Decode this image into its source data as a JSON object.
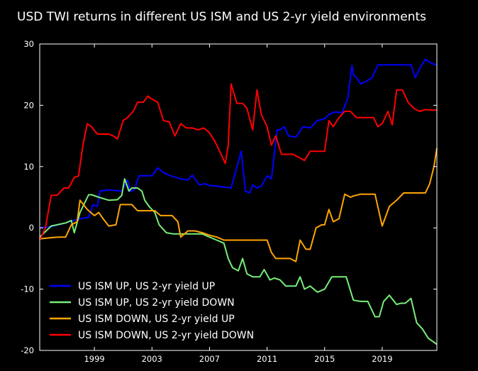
{
  "chart_data": {
    "type": "line",
    "title": "USD TWI returns in different US ISM and US 2-yr yield environments",
    "xlabel": "",
    "ylabel": "",
    "xlim": [
      1995.2,
      2022.8
    ],
    "ylim": [
      -20,
      30
    ],
    "xticks": [
      1999,
      2003,
      2007,
      2011,
      2015,
      2019
    ],
    "yticks": [
      -20,
      -10,
      0,
      10,
      20,
      30
    ],
    "grid": false,
    "legend_position": "lower-left",
    "series": [
      {
        "name": "US ISM UP, US 2-yr yield UP",
        "color": "#0000ff",
        "x": [
          1995.2,
          1996.0,
          1997.0,
          1998.0,
          1998.6,
          1998.9,
          1999.2,
          1999.4,
          2000.0,
          2000.9,
          2001.3,
          2001.5,
          2001.8,
          2002.1,
          2003.0,
          2003.4,
          2003.8,
          2004.3,
          2005.0,
          2005.5,
          2005.8,
          2006.3,
          2006.7,
          2007.0,
          2007.5,
          2008.5,
          2009.2,
          2009.5,
          2009.8,
          2010.0,
          2010.3,
          2010.6,
          2011.0,
          2011.3,
          2011.7,
          2011.9,
          2012.2,
          2012.5,
          2013.0,
          2013.5,
          2014.0,
          2014.5,
          2015.0,
          2015.3,
          2015.7,
          2016.2,
          2016.6,
          2016.9,
          2017.0,
          2017.2,
          2017.5,
          2017.8,
          2018.3,
          2018.7,
          2019.0,
          2019.5,
          2020.0,
          2020.5,
          2021.0,
          2021.3,
          2021.7,
          2022.0,
          2022.3,
          2022.8
        ],
        "y": [
          0,
          0.2,
          0.8,
          1.5,
          1.7,
          3.8,
          3.5,
          6.0,
          6.2,
          6.0,
          7.8,
          5.9,
          6.3,
          8.5,
          8.5,
          9.8,
          9.0,
          8.5,
          8.0,
          7.8,
          8.6,
          7.0,
          7.2,
          6.9,
          6.8,
          6.5,
          12.5,
          6.0,
          5.7,
          7.0,
          6.5,
          6.8,
          8.5,
          8.0,
          16.0,
          16.0,
          16.5,
          15.0,
          14.8,
          16.5,
          16.3,
          17.5,
          17.8,
          18.5,
          18.9,
          18.8,
          21.0,
          26.5,
          25.0,
          24.5,
          23.5,
          23.8,
          24.5,
          26.6,
          26.6,
          26.6,
          26.6,
          26.6,
          26.6,
          24.5,
          26.4,
          27.5,
          27.0,
          26.5
        ]
      },
      {
        "name": "US ISM UP, US 2-yr yield DOWN",
        "color": "#77ee77",
        "x": [
          1995.2,
          1996.0,
          1997.0,
          1997.4,
          1997.6,
          1998.0,
          1998.6,
          1998.8,
          1999.3,
          2000.0,
          2000.6,
          2000.9,
          2001.1,
          2001.4,
          2001.6,
          2002.0,
          2002.3,
          2002.5,
          2002.8,
          2003.2,
          2003.5,
          2004.0,
          2004.5,
          2005.0,
          2005.5,
          2006.0,
          2006.5,
          2007.0,
          2007.5,
          2008.0,
          2008.3,
          2008.6,
          2009.0,
          2009.3,
          2009.6,
          2010.0,
          2010.5,
          2010.8,
          2011.2,
          2011.5,
          2011.9,
          2012.3,
          2013.0,
          2013.3,
          2013.6,
          2014.0,
          2014.5,
          2015.0,
          2015.5,
          2016.0,
          2016.5,
          2017.0,
          2017.5,
          2018.0,
          2018.5,
          2018.8,
          2019.1,
          2019.5,
          2020.0,
          2020.3,
          2020.6,
          2021.0,
          2021.4,
          2021.8,
          2022.2,
          2022.8
        ],
        "y": [
          -1.5,
          0.3,
          0.8,
          1.2,
          -0.8,
          2.5,
          5.4,
          5.4,
          5.0,
          4.5,
          4.6,
          5.3,
          8.0,
          6.0,
          6.5,
          6.5,
          6.0,
          4.5,
          3.5,
          2.5,
          0.5,
          -0.8,
          -1.0,
          -1.0,
          -1.0,
          -1.0,
          -1.0,
          -1.5,
          -2.0,
          -2.5,
          -5.0,
          -6.5,
          -7.0,
          -5.0,
          -7.5,
          -8.0,
          -8.0,
          -6.8,
          -8.5,
          -8.2,
          -8.5,
          -9.5,
          -9.5,
          -8.0,
          -10.0,
          -9.5,
          -10.5,
          -10.0,
          -8.0,
          -8.0,
          -8.0,
          -11.8,
          -12.0,
          -12.0,
          -14.5,
          -14.5,
          -12.0,
          -11.0,
          -12.5,
          -12.3,
          -12.3,
          -11.5,
          -15.5,
          -16.5,
          -18.0,
          -19.0
        ]
      },
      {
        "name": "US ISM DOWN, US 2-yr yield UP",
        "color": "#ffa500",
        "x": [
          1995.2,
          1996.0,
          1996.5,
          1997.0,
          1997.4,
          1997.8,
          1998.0,
          1998.5,
          1999.0,
          1999.3,
          1999.6,
          2000.0,
          2000.5,
          2000.8,
          2001.2,
          2001.6,
          2002.0,
          2002.4,
          2002.8,
          2003.2,
          2003.6,
          2004.0,
          2004.4,
          2004.8,
          2005.0,
          2005.5,
          2006.0,
          2006.5,
          2007.0,
          2007.5,
          2008.0,
          2008.5,
          2009.0,
          2009.5,
          2010.0,
          2010.5,
          2011.0,
          2011.3,
          2011.6,
          2012.0,
          2012.3,
          2012.6,
          2013.0,
          2013.3,
          2013.7,
          2014.0,
          2014.4,
          2014.8,
          2015.0,
          2015.3,
          2015.6,
          2016.0,
          2016.4,
          2016.8,
          2017.0,
          2017.5,
          2018.0,
          2018.5,
          2019.0,
          2019.5,
          2020.0,
          2020.5,
          2021.0,
          2021.5,
          2022.0,
          2022.3,
          2022.6,
          2022.8
        ],
        "y": [
          -1.8,
          -1.6,
          -1.5,
          -1.5,
          0.5,
          1.0,
          4.5,
          3.0,
          2.0,
          2.5,
          1.5,
          0.3,
          0.5,
          3.8,
          3.8,
          3.8,
          2.8,
          2.8,
          2.8,
          2.8,
          2.0,
          2.0,
          2.0,
          1.0,
          -1.5,
          -0.5,
          -0.5,
          -0.8,
          -1.2,
          -1.5,
          -2.0,
          -2.0,
          -2.0,
          -2.0,
          -2.0,
          -2.0,
          -2.0,
          -4.0,
          -5.0,
          -5.0,
          -5.0,
          -5.0,
          -5.5,
          -2.0,
          -3.5,
          -3.5,
          0.0,
          0.5,
          0.5,
          3.0,
          1.0,
          1.5,
          5.5,
          5.0,
          5.2,
          5.5,
          5.5,
          5.5,
          0.3,
          3.5,
          4.5,
          5.7,
          5.7,
          5.7,
          5.7,
          7.2,
          10.0,
          13.0
        ]
      },
      {
        "name": "US ISM DOWN, US 2-yr yield DOWN",
        "color": "#ff0000",
        "x": [
          1995.2,
          1995.6,
          1996.0,
          1996.4,
          1996.9,
          1997.2,
          1997.6,
          1997.9,
          1998.2,
          1998.5,
          1998.8,
          1999.2,
          1999.6,
          2000.0,
          2000.3,
          2000.6,
          2001.0,
          2001.3,
          2001.7,
          2002.0,
          2002.4,
          2002.7,
          2003.0,
          2003.4,
          2003.8,
          2004.2,
          2004.6,
          2005.0,
          2005.4,
          2005.8,
          2006.2,
          2006.6,
          2007.0,
          2007.4,
          2007.8,
          2008.1,
          2008.3,
          2008.5,
          2008.9,
          2009.3,
          2009.6,
          2010.0,
          2010.3,
          2010.6,
          2011.0,
          2011.3,
          2011.6,
          2012.0,
          2012.4,
          2012.8,
          2013.2,
          2013.6,
          2014.0,
          2014.5,
          2015.0,
          2015.3,
          2015.6,
          2016.0,
          2016.4,
          2016.8,
          2017.2,
          2017.6,
          2018.0,
          2018.4,
          2018.7,
          2019.0,
          2019.4,
          2019.7,
          2020.0,
          2020.4,
          2020.8,
          2021.2,
          2021.6,
          2022.0,
          2022.4,
          2022.8
        ],
        "y": [
          -2.0,
          0.0,
          5.3,
          5.3,
          6.5,
          6.5,
          8.2,
          8.5,
          13.5,
          17.0,
          16.5,
          15.3,
          15.3,
          15.3,
          15.0,
          14.5,
          17.5,
          18.0,
          19.0,
          20.5,
          20.5,
          21.5,
          21.0,
          20.5,
          17.5,
          17.3,
          15.0,
          17.0,
          16.3,
          16.3,
          16.0,
          16.3,
          15.5,
          14.0,
          12.0,
          10.5,
          13.5,
          23.5,
          20.3,
          20.3,
          19.5,
          16.0,
          22.5,
          18.5,
          16.5,
          13.5,
          15.0,
          12.0,
          12.0,
          12.0,
          11.5,
          11.0,
          12.5,
          12.5,
          12.5,
          17.5,
          16.5,
          18.0,
          19.0,
          19.0,
          18.0,
          18.0,
          18.0,
          18.0,
          16.5,
          17.0,
          19.0,
          16.8,
          22.5,
          22.5,
          20.5,
          19.5,
          19.0,
          19.3,
          19.2,
          19.2
        ]
      }
    ]
  }
}
